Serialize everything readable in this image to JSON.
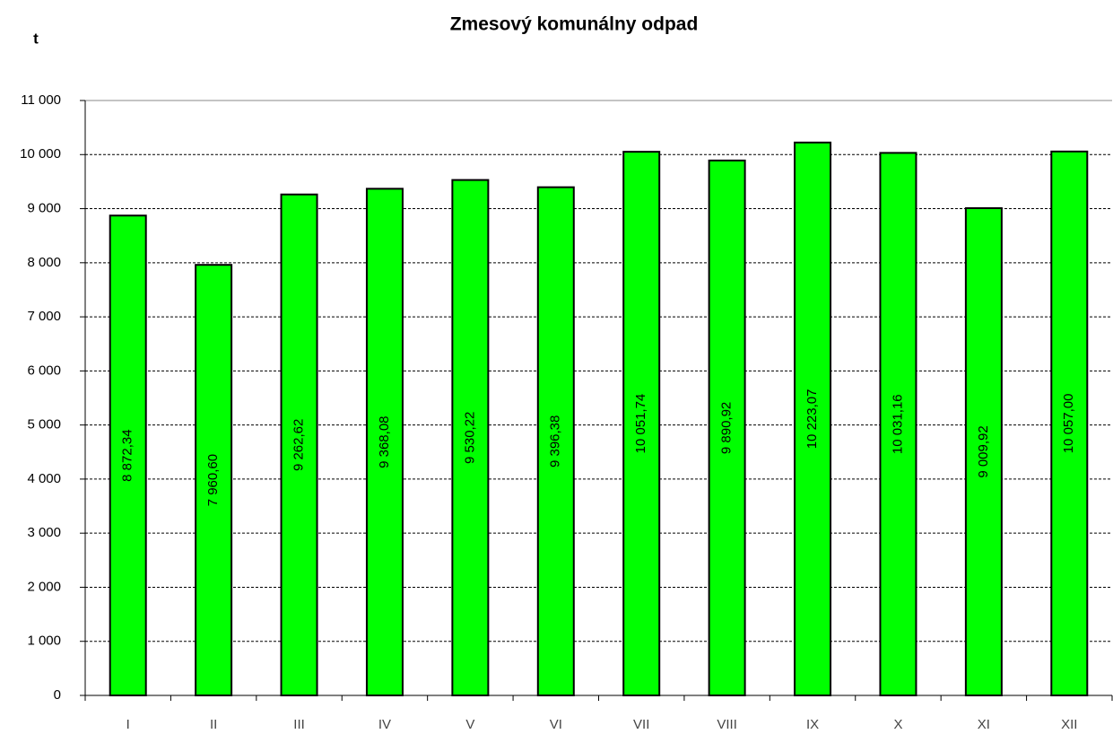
{
  "chart_data": {
    "type": "bar",
    "title": "Zmesový komunálny odpad",
    "y_label": "t",
    "categories": [
      "I",
      "II",
      "III",
      "IV",
      "V",
      "VI",
      "VII",
      "VIII",
      "IX",
      "X",
      "XI",
      "XII"
    ],
    "values": [
      8872.34,
      7960.6,
      9262.62,
      9368.08,
      9530.22,
      9396.38,
      10051.74,
      9890.92,
      10223.07,
      10031.16,
      9009.92,
      10057.0
    ],
    "value_labels": [
      "8 872,34",
      "7 960,60",
      "9 262,62",
      "9 368,08",
      "9 530,22",
      "9 396,38",
      "10 051,74",
      "9 890,92",
      "10 223,07",
      "10 031,16",
      "9 009,92",
      "10 057,00"
    ],
    "color": "#00ff00",
    "ylim": [
      0,
      11000
    ],
    "yticks": [
      0,
      {
        "value": 1000,
        "label": "1 000"
      },
      {
        "value": 2000,
        "label": "2 000"
      },
      {
        "value": 3000,
        "label": "3 000"
      },
      {
        "value": 4000,
        "label": "4 000"
      },
      {
        "value": 5000,
        "label": "5 000"
      },
      {
        "value": 6000,
        "label": "6 000"
      },
      {
        "value": 7000,
        "label": "7 000"
      },
      {
        "value": 8000,
        "label": "8 000"
      },
      {
        "value": 9000,
        "label": "9 000"
      },
      {
        "value": 10000,
        "label": "10 000"
      },
      {
        "value": 11000,
        "label": "11 000"
      }
    ],
    "grid": true
  }
}
